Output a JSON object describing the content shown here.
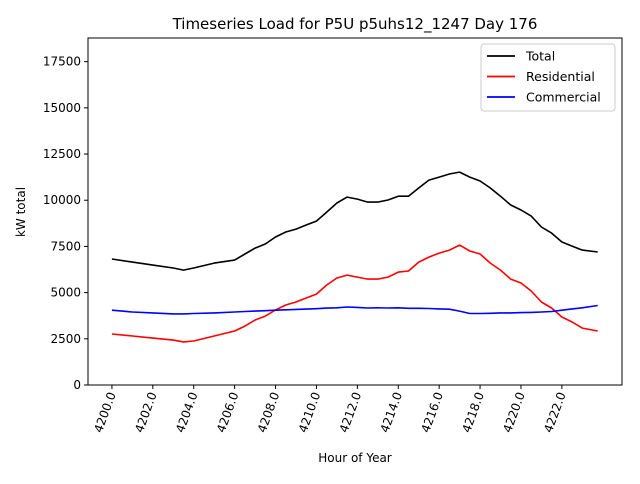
{
  "chart_data": {
    "type": "line",
    "title": "Timeseries Load for P5U p5uhs12_1247  Day 176",
    "xlabel": "Hour of Year",
    "ylabel": "kW total",
    "xlim": [
      4198.83,
      4224.94
    ],
    "ylim": [
      0,
      18780
    ],
    "xticks": [
      4200,
      4202,
      4204,
      4206,
      4208,
      4210,
      4212,
      4214,
      4216,
      4218,
      4220,
      4222
    ],
    "xtick_labels": [
      "4200.0",
      "4202.0",
      "4204.0",
      "4206.0",
      "4208.0",
      "4210.0",
      "4212.0",
      "4214.0",
      "4216.0",
      "4218.0",
      "4220.0",
      "4222.0"
    ],
    "yticks": [
      0,
      2500,
      5000,
      7500,
      10000,
      12500,
      15000,
      17500
    ],
    "ytick_labels": [
      "0",
      "2500",
      "5000",
      "7500",
      "10000",
      "12500",
      "15000",
      "17500"
    ],
    "grid": false,
    "legend_position": "top-right",
    "x": [
      4200,
      4201,
      4202,
      4203,
      4203.5,
      4204,
      4205,
      4206,
      4206.5,
      4207,
      4207.5,
      4208,
      4208.5,
      4209,
      4209.5,
      4210,
      4210.5,
      4211,
      4211.5,
      4212,
      4212.5,
      4213,
      4213.5,
      4214,
      4214.5,
      4215,
      4215.5,
      4216,
      4216.5,
      4217,
      4217.5,
      4218,
      4218.5,
      4219,
      4219.5,
      4220,
      4220.5,
      4221,
      4221.5,
      4222,
      4222.5,
      4223,
      4223.75
    ],
    "series": [
      {
        "name": "Total",
        "color": "#000000",
        "values": [
          6820,
          6650,
          6490,
          6330,
          6220,
          6330,
          6600,
          6760,
          7090,
          7410,
          7630,
          8010,
          8280,
          8440,
          8660,
          8870,
          9360,
          9850,
          10170,
          10060,
          9900,
          9900,
          10010,
          10220,
          10220,
          10660,
          11090,
          11250,
          11420,
          11520,
          11250,
          11040,
          10660,
          10220,
          9740,
          9470,
          9140,
          8550,
          8220,
          7740,
          7520,
          7300,
          7200
        ]
      },
      {
        "name": "Residential",
        "color": "#ff0000",
        "values": [
          2760,
          2650,
          2540,
          2430,
          2330,
          2380,
          2650,
          2920,
          3190,
          3520,
          3730,
          4060,
          4330,
          4490,
          4710,
          4920,
          5410,
          5790,
          5950,
          5840,
          5730,
          5730,
          5840,
          6110,
          6170,
          6650,
          6920,
          7140,
          7300,
          7570,
          7250,
          7090,
          6600,
          6220,
          5730,
          5520,
          5090,
          4490,
          4170,
          3680,
          3410,
          3080,
          2920
        ]
      },
      {
        "name": "Commercial",
        "color": "#0000ff",
        "values": [
          4050,
          3950,
          3900,
          3850,
          3850,
          3870,
          3900,
          3950,
          3980,
          4000,
          4020,
          4050,
          4070,
          4090,
          4110,
          4130,
          4160,
          4180,
          4220,
          4200,
          4170,
          4180,
          4170,
          4180,
          4150,
          4150,
          4140,
          4120,
          4100,
          4000,
          3870,
          3870,
          3880,
          3900,
          3900,
          3920,
          3930,
          3950,
          3980,
          4050,
          4120,
          4180,
          4300
        ]
      }
    ]
  }
}
